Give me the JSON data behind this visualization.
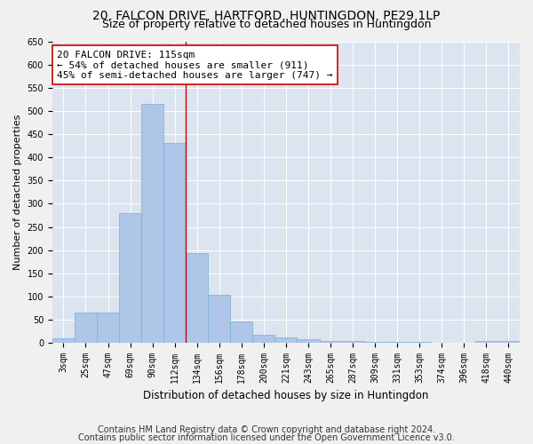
{
  "title1": "20, FALCON DRIVE, HARTFORD, HUNTINGDON, PE29 1LP",
  "title2": "Size of property relative to detached houses in Huntingdon",
  "xlabel": "Distribution of detached houses by size in Huntingdon",
  "ylabel": "Number of detached properties",
  "categories": [
    "3sqm",
    "25sqm",
    "47sqm",
    "69sqm",
    "90sqm",
    "112sqm",
    "134sqm",
    "156sqm",
    "178sqm",
    "200sqm",
    "221sqm",
    "243sqm",
    "265sqm",
    "287sqm",
    "309sqm",
    "331sqm",
    "353sqm",
    "374sqm",
    "396sqm",
    "418sqm",
    "440sqm"
  ],
  "values": [
    10,
    65,
    65,
    280,
    515,
    430,
    193,
    103,
    47,
    17,
    12,
    8,
    5,
    5,
    3,
    2,
    2,
    1,
    0,
    5,
    5
  ],
  "bar_color": "#aec6e8",
  "bar_edge_color": "#7aafd4",
  "highlight_bar_index": 5,
  "highlight_line_color": "#cc0000",
  "annotation_line1": "20 FALCON DRIVE: 115sqm",
  "annotation_line2": "← 54% of detached houses are smaller (911)",
  "annotation_line3": "45% of semi-detached houses are larger (747) →",
  "annotation_box_color": "#ffffff",
  "annotation_box_edge_color": "#cc0000",
  "ylim": [
    0,
    650
  ],
  "yticks": [
    0,
    50,
    100,
    150,
    200,
    250,
    300,
    350,
    400,
    450,
    500,
    550,
    600,
    650
  ],
  "plot_bg_color": "#dce4f0",
  "grid_color": "#ffffff",
  "footnote1": "Contains HM Land Registry data © Crown copyright and database right 2024.",
  "footnote2": "Contains public sector information licensed under the Open Government Licence v3.0.",
  "title1_fontsize": 10,
  "title2_fontsize": 9,
  "annotation_fontsize": 8,
  "ylabel_fontsize": 8,
  "xlabel_fontsize": 8.5,
  "footnote_fontsize": 7,
  "tick_fontsize": 7
}
